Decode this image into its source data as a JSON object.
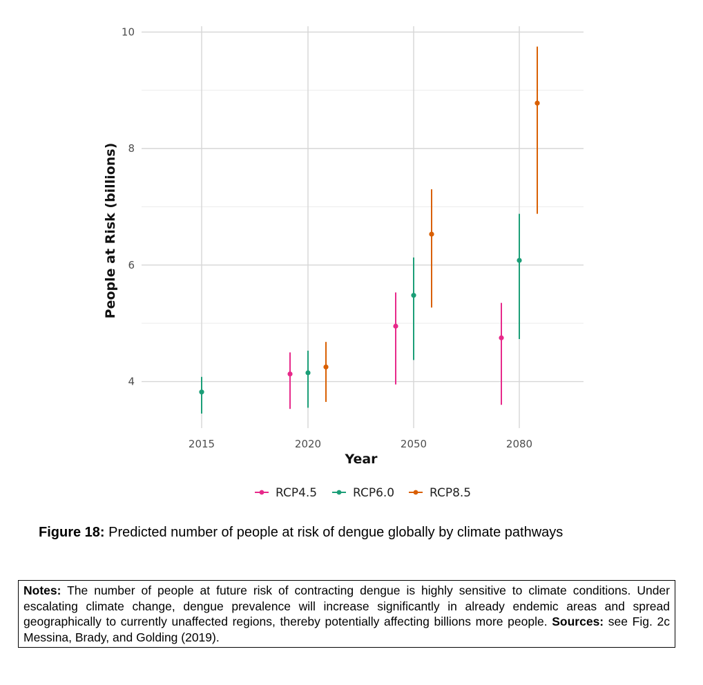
{
  "chart_data": {
    "type": "scatter",
    "subtype": "point-range",
    "categories": [
      "2015",
      "2020",
      "2050",
      "2080"
    ],
    "xlabel": "Year",
    "ylabel": "People at Risk (billions)",
    "ylim": [
      3.2,
      10.1
    ],
    "yticks": [
      4,
      6,
      8,
      10
    ],
    "grid": true,
    "legend_position": "bottom",
    "colors": {
      "RCP4.5": "#e7298a",
      "RCP6.0": "#1b9e77",
      "RCP8.5": "#d95f02"
    },
    "series": [
      {
        "name": "RCP4.5",
        "points": [
          {
            "category": "2020",
            "value": 4.13,
            "low": 3.53,
            "high": 4.5
          },
          {
            "category": "2050",
            "value": 4.95,
            "low": 3.95,
            "high": 5.53
          },
          {
            "category": "2080",
            "value": 4.75,
            "low": 3.6,
            "high": 5.35
          }
        ]
      },
      {
        "name": "RCP6.0",
        "points": [
          {
            "category": "2015",
            "value": 3.82,
            "low": 3.45,
            "high": 4.08
          },
          {
            "category": "2020",
            "value": 4.15,
            "low": 3.55,
            "high": 4.53
          },
          {
            "category": "2050",
            "value": 5.48,
            "low": 4.37,
            "high": 6.13
          },
          {
            "category": "2080",
            "value": 6.08,
            "low": 4.73,
            "high": 6.88
          }
        ]
      },
      {
        "name": "RCP8.5",
        "points": [
          {
            "category": "2020",
            "value": 4.25,
            "low": 3.65,
            "high": 4.68
          },
          {
            "category": "2050",
            "value": 6.53,
            "low": 5.27,
            "high": 7.3
          },
          {
            "category": "2080",
            "value": 8.78,
            "low": 6.88,
            "high": 9.75
          }
        ]
      }
    ]
  },
  "caption": {
    "label": "Figure 18:",
    "text": " Predicted number of people at risk of dengue globally by climate pathways"
  },
  "notes": {
    "label": "Notes:",
    "text": " The number of people at future risk of contracting dengue is highly sensitive to climate conditions. Under escalating climate change, dengue prevalence will increase significantly in already endemic areas and spread geographically to currently unaffected regions, thereby potentially affecting billions more people. ",
    "sources_label": "Sources:",
    "sources_text": " see Fig. 2c Messina, Brady, and Golding (2019)."
  }
}
